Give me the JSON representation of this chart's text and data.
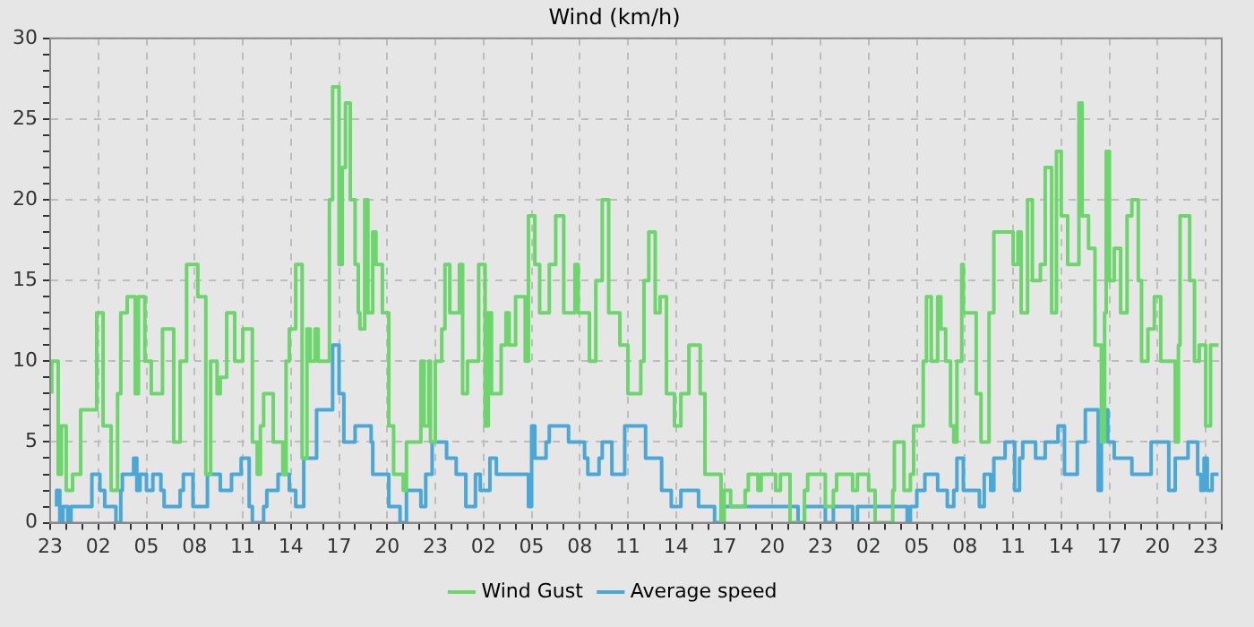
{
  "chart_data": {
    "type": "step",
    "title": "Wind (km/h)",
    "xlim": [
      "--01-01T23:00",
      "--01-05T00:00"
    ],
    "ylim": [
      0,
      30
    ],
    "xticks": [
      {
        "value": "--01-01T23:00",
        "label": "23"
      },
      {
        "value": "--01-02T00:00",
        "label": null
      },
      {
        "value": "--01-02T01:00",
        "label": null
      },
      {
        "value": "--01-02T02:00",
        "label": "02"
      },
      {
        "value": "--01-02T03:00",
        "label": null
      },
      {
        "value": "--01-02T04:00",
        "label": null
      },
      {
        "value": "--01-02T05:00",
        "label": "05"
      },
      {
        "value": "--01-02T06:00",
        "label": null
      },
      {
        "value": "--01-02T07:00",
        "label": null
      },
      {
        "value": "--01-02T08:00",
        "label": "08"
      },
      {
        "value": "--01-02T09:00",
        "label": null
      },
      {
        "value": "--01-02T10:00",
        "label": null
      },
      {
        "value": "--01-02T11:00",
        "label": "11"
      },
      {
        "value": "--01-02T12:00",
        "label": null
      },
      {
        "value": "--01-02T13:00",
        "label": null
      },
      {
        "value": "--01-02T14:00",
        "label": "14"
      },
      {
        "value": "--01-02T15:00",
        "label": null
      },
      {
        "value": "--01-02T16:00",
        "label": null
      },
      {
        "value": "--01-02T17:00",
        "label": "17"
      },
      {
        "value": "--01-02T18:00",
        "label": null
      },
      {
        "value": "--01-02T19:00",
        "label": null
      },
      {
        "value": "--01-02T20:00",
        "label": "20"
      },
      {
        "value": "--01-02T21:00",
        "label": null
      },
      {
        "value": "--01-02T22:00",
        "label": null
      },
      {
        "value": "--01-02T23:00",
        "label": "23"
      },
      {
        "value": "--01-03T00:00",
        "label": null
      },
      {
        "value": "--01-03T01:00",
        "label": null
      },
      {
        "value": "--01-03T02:00",
        "label": "02"
      },
      {
        "value": "--01-03T03:00",
        "label": null
      },
      {
        "value": "--01-03T04:00",
        "label": null
      },
      {
        "value": "--01-03T05:00",
        "label": "05"
      },
      {
        "value": "--01-03T06:00",
        "label": null
      },
      {
        "value": "--01-03T07:00",
        "label": null
      },
      {
        "value": "--01-03T08:00",
        "label": "08"
      },
      {
        "value": "--01-03T09:00",
        "label": null
      },
      {
        "value": "--01-03T10:00",
        "label": null
      },
      {
        "value": "--01-03T11:00",
        "label": "11"
      },
      {
        "value": "--01-03T12:00",
        "label": null
      },
      {
        "value": "--01-03T13:00",
        "label": null
      },
      {
        "value": "--01-03T14:00",
        "label": "14"
      },
      {
        "value": "--01-03T15:00",
        "label": null
      },
      {
        "value": "--01-03T16:00",
        "label": null
      },
      {
        "value": "--01-03T17:00",
        "label": "17"
      },
      {
        "value": "--01-03T18:00",
        "label": null
      },
      {
        "value": "--01-03T19:00",
        "label": null
      },
      {
        "value": "--01-03T20:00",
        "label": "20"
      },
      {
        "value": "--01-03T21:00",
        "label": null
      },
      {
        "value": "--01-03T22:00",
        "label": null
      },
      {
        "value": "--01-03T23:00",
        "label": "23"
      },
      {
        "value": "--01-04T00:00",
        "label": null
      },
      {
        "value": "--01-04T01:00",
        "label": null
      },
      {
        "value": "--01-04T02:00",
        "label": "02"
      },
      {
        "value": "--01-04T03:00",
        "label": null
      },
      {
        "value": "--01-04T04:00",
        "label": null
      },
      {
        "value": "--01-04T05:00",
        "label": "05"
      },
      {
        "value": "--01-04T06:00",
        "label": null
      },
      {
        "value": "--01-04T07:00",
        "label": null
      },
      {
        "value": "--01-04T08:00",
        "label": "08"
      },
      {
        "value": "--01-04T09:00",
        "label": null
      },
      {
        "value": "--01-04T10:00",
        "label": null
      },
      {
        "value": "--01-04T11:00",
        "label": "11"
      },
      {
        "value": "--01-04T12:00",
        "label": null
      },
      {
        "value": "--01-04T13:00",
        "label": null
      },
      {
        "value": "--01-04T14:00",
        "label": "14"
      },
      {
        "value": "--01-04T15:00",
        "label": null
      },
      {
        "value": "--01-04T16:00",
        "label": null
      },
      {
        "value": "--01-04T17:00",
        "label": "17"
      },
      {
        "value": "--01-04T18:00",
        "label": null
      },
      {
        "value": "--01-04T19:00",
        "label": null
      },
      {
        "value": "--01-04T20:00",
        "label": "20"
      },
      {
        "value": "--01-04T21:00",
        "label": null
      },
      {
        "value": "--01-04T22:00",
        "label": null
      },
      {
        "value": "--01-04T23:00",
        "label": "23"
      },
      {
        "value": "--01-05T00:00",
        "label": null
      }
    ],
    "yticks": [
      0,
      {
        "value": 1,
        "label": null
      },
      {
        "value": 2,
        "label": null
      },
      {
        "value": 3,
        "label": null
      },
      {
        "value": 4,
        "label": null
      },
      5,
      {
        "value": 6,
        "label": null
      },
      {
        "value": 7,
        "label": null
      },
      {
        "value": 8,
        "label": null
      },
      {
        "value": 9,
        "label": null
      },
      10,
      {
        "value": 11,
        "label": null
      },
      {
        "value": 12,
        "label": null
      },
      {
        "value": 13,
        "label": null
      },
      {
        "value": 14,
        "label": null
      },
      15,
      {
        "value": 16,
        "label": null
      },
      {
        "value": 17,
        "label": null
      },
      {
        "value": 18,
        "label": null
      },
      {
        "value": 19,
        "label": null
      },
      20,
      {
        "value": 21,
        "label": null
      },
      {
        "value": 22,
        "label": null
      },
      {
        "value": 23,
        "label": null
      },
      {
        "value": 24,
        "label": null
      },
      25,
      {
        "value": 26,
        "label": null
      },
      {
        "value": 27,
        "label": null
      },
      {
        "value": 28,
        "label": null
      },
      {
        "value": 29,
        "label": null
      },
      30
    ],
    "grid": true,
    "legend": "bottom",
    "marker": "none",
    "line_style": "solid",
    "series": [
      {
        "name": "Wind Gust",
        "color": "#6cd66c",
        "x": [
          "--01-01T23:06",
          "--01-01T23:30",
          "--01-01T23:42",
          "--01-02T00:00",
          "--01-02T00:24",
          "--01-02T00:54",
          "--01-02T01:54",
          "--01-02T02:18",
          "--01-02T02:48",
          "--01-02T03:12",
          "--01-02T03:24",
          "--01-02T03:48",
          "--01-02T04:18",
          "--01-02T04:30",
          "--01-02T04:54",
          "--01-02T05:18",
          "--01-02T06:00",
          "--01-02T06:42",
          "--01-02T07:06",
          "--01-02T07:30",
          "--01-02T08:12",
          "--01-02T08:42",
          "--01-02T09:00",
          "--01-02T09:24",
          "--01-02T09:36",
          "--01-02T10:00",
          "--01-02T10:30",
          "--01-02T11:00",
          "--01-02T11:36",
          "--01-02T11:54",
          "--01-02T12:06",
          "--01-02T12:18",
          "--01-02T12:54",
          "--01-02T13:30",
          "--01-02T13:42",
          "--01-02T13:54",
          "--01-02T14:18",
          "--01-02T14:42",
          "--01-02T15:00",
          "--01-02T15:12",
          "--01-02T15:30",
          "--01-02T15:42",
          "--01-02T16:24",
          "--01-02T16:36",
          "--01-02T17:00",
          "--01-02T17:12",
          "--01-02T17:24",
          "--01-02T17:42",
          "--01-02T18:00",
          "--01-02T18:12",
          "--01-02T18:18",
          "--01-02T18:36",
          "--01-02T18:48",
          "--01-02T19:06",
          "--01-02T19:18",
          "--01-02T19:42",
          "--01-02T20:06",
          "--01-02T20:24",
          "--01-02T21:00",
          "--01-02T21:12",
          "--01-02T22:06",
          "--01-02T22:18",
          "--01-02T22:36",
          "--01-02T22:42",
          "--01-02T23:00",
          "--01-02T23:24",
          "--01-02T23:36",
          "--01-02T23:54",
          "--01-03T00:30",
          "--01-03T00:42",
          "--01-03T01:00",
          "--01-03T01:42",
          "--01-03T02:06",
          "--01-03T02:18",
          "--01-03T02:30",
          "--01-03T03:06",
          "--01-03T03:24",
          "--01-03T03:36",
          "--01-03T04:00",
          "--01-03T04:36",
          "--01-03T04:48",
          "--01-03T05:12",
          "--01-03T05:30",
          "--01-03T06:06",
          "--01-03T06:30",
          "--01-03T07:00",
          "--01-03T07:42",
          "--01-03T07:54",
          "--01-03T08:36",
          "--01-03T09:00",
          "--01-03T09:24",
          "--01-03T09:48",
          "--01-03T10:30",
          "--01-03T11:00",
          "--01-03T11:48",
          "--01-03T12:00",
          "--01-03T12:18",
          "--01-03T12:42",
          "--01-03T13:00",
          "--01-03T13:24",
          "--01-03T13:54",
          "--01-03T14:18",
          "--01-03T14:48",
          "--01-03T15:30",
          "--01-03T15:48",
          "--01-03T16:48",
          "--01-03T17:00",
          "--01-03T17:24",
          "--01-03T18:18",
          "--01-03T18:30",
          "--01-03T19:06",
          "--01-03T19:18",
          "--01-03T20:12",
          "--01-03T20:30",
          "--01-03T21:06",
          "--01-03T22:00",
          "--01-03T22:12",
          "--01-03T23:18",
          "--01-03T23:48",
          "--01-04T00:00",
          "--01-04T01:00",
          "--01-04T01:18",
          "--01-04T02:00",
          "--01-04T02:24",
          "--01-04T03:30",
          "--01-04T03:36",
          "--01-04T04:12",
          "--01-04T04:36",
          "--01-04T04:48",
          "--01-04T05:24",
          "--01-04T05:36",
          "--01-04T05:54",
          "--01-04T06:18",
          "--01-04T06:30",
          "--01-04T06:48",
          "--01-04T07:06",
          "--01-04T07:18",
          "--01-04T07:30",
          "--01-04T07:48",
          "--01-04T07:54",
          "--01-04T08:42",
          "--01-04T09:00",
          "--01-04T09:30",
          "--01-04T09:48",
          "--01-04T11:00",
          "--01-04T11:18",
          "--01-04T11:30",
          "--01-04T11:54",
          "--01-04T12:12",
          "--01-04T12:42",
          "--01-04T13:00",
          "--01-04T13:24",
          "--01-04T13:42",
          "--01-04T14:00",
          "--01-04T14:24",
          "--01-04T15:06",
          "--01-04T15:18",
          "--01-04T15:42",
          "--01-04T16:06",
          "--01-04T16:30",
          "--01-04T16:42",
          "--01-04T16:48",
          "--01-04T17:00",
          "--01-04T17:18",
          "--01-04T17:42",
          "--01-04T18:06",
          "--01-04T18:24",
          "--01-04T18:48",
          "--01-04T19:00",
          "--01-04T19:24",
          "--01-04T19:48",
          "--01-04T20:12",
          "--01-04T21:06",
          "--01-04T21:18",
          "--01-04T21:24",
          "--01-04T22:00",
          "--01-04T22:18",
          "--01-04T22:36",
          "--01-04T23:00",
          "--01-04T23:18",
          "--01-04T23:24",
          "--01-04T23:48"
        ],
        "values": [
          8,
          10,
          3,
          6,
          2,
          3,
          7,
          13,
          6,
          2,
          8,
          13,
          14,
          8,
          14,
          10,
          8,
          12,
          5,
          10,
          16,
          14,
          3,
          10,
          8,
          9,
          13,
          10,
          12,
          5,
          3,
          6,
          8,
          5,
          3,
          10,
          12,
          16,
          4,
          12,
          10,
          12,
          10,
          20,
          27,
          16,
          22,
          26,
          20,
          16,
          13,
          12,
          20,
          13,
          18,
          16,
          13,
          6,
          3,
          2,
          5,
          10,
          6,
          10,
          5,
          10,
          12,
          16,
          13,
          16,
          8,
          10,
          16,
          6,
          13,
          8,
          11,
          13,
          11,
          14,
          10,
          19,
          16,
          13,
          16,
          19,
          13,
          16,
          13,
          10,
          15,
          20,
          13,
          11,
          8,
          10,
          15,
          18,
          13,
          14,
          8,
          6,
          8,
          11,
          8,
          3,
          0,
          2,
          1,
          2,
          3,
          2,
          3,
          2,
          3,
          0,
          2,
          3,
          1,
          2,
          3,
          2,
          3,
          2,
          0,
          2,
          5,
          2,
          3,
          6,
          10,
          14,
          10,
          14,
          12,
          10,
          6,
          5,
          10,
          16,
          13,
          8,
          5,
          13,
          18,
          16,
          18,
          13,
          20,
          15,
          16,
          22,
          13,
          23,
          19,
          16,
          26,
          19,
          17,
          11,
          5,
          13,
          23,
          15,
          17,
          13,
          19,
          20,
          15,
          10,
          12,
          14,
          10,
          5,
          11,
          19,
          15,
          10,
          11,
          6,
          11,
          11
        ]
      },
      {
        "name": "Average speed",
        "color": "#4aa8d8",
        "x": [
          "--01-01T23:24",
          "--01-01T23:36",
          "--01-01T23:48",
          "--01-02T00:06",
          "--01-02T00:18",
          "--01-02T01:36",
          "--01-02T02:06",
          "--01-02T02:24",
          "--01-02T03:06",
          "--01-02T03:24",
          "--01-02T03:30",
          "--01-02T04:12",
          "--01-02T04:24",
          "--01-02T04:36",
          "--01-02T05:00",
          "--01-02T05:24",
          "--01-02T05:54",
          "--01-02T06:06",
          "--01-02T07:06",
          "--01-02T07:18",
          "--01-02T07:54",
          "--01-02T08:48",
          "--01-02T09:36",
          "--01-02T10:18",
          "--01-02T10:54",
          "--01-02T11:24",
          "--01-02T11:36",
          "--01-02T12:18",
          "--01-02T12:30",
          "--01-02T13:12",
          "--01-02T13:54",
          "--01-02T14:18",
          "--01-02T14:48",
          "--01-02T15:36",
          "--01-02T16:36",
          "--01-02T17:00",
          "--01-02T17:18",
          "--01-02T18:00",
          "--01-02T19:00",
          "--01-02T19:06",
          "--01-02T20:06",
          "--01-02T20:48",
          "--01-02T21:12",
          "--01-02T22:06",
          "--01-02T22:24",
          "--01-02T22:48",
          "--01-02T23:42",
          "--01-03T00:18",
          "--01-03T00:54",
          "--01-03T01:30",
          "--01-03T01:48",
          "--01-03T02:24",
          "--01-03T02:48",
          "--01-03T04:48",
          "--01-03T05:00",
          "--01-03T05:12",
          "--01-03T05:54",
          "--01-03T06:06",
          "--01-03T07:18",
          "--01-03T08:18",
          "--01-03T08:30",
          "--01-03T09:12",
          "--01-03T09:24",
          "--01-03T10:00",
          "--01-03T10:48",
          "--01-03T12:06",
          "--01-03T13:06",
          "--01-03T13:42",
          "--01-03T14:18",
          "--01-03T15:24",
          "--01-03T16:24",
          "--01-03T16:48",
          "--01-03T21:36",
          "--01-03T22:00",
          "--01-03T23:18",
          "--01-03T23:48",
          "--01-04T01:00",
          "--01-04T01:18",
          "--01-04T04:24",
          "--01-04T04:36",
          "--01-04T05:00",
          "--01-04T05:30",
          "--01-04T06:18",
          "--01-04T06:54",
          "--01-04T07:18",
          "--01-04T07:30",
          "--01-04T07:54",
          "--01-04T08:54",
          "--01-04T09:12",
          "--01-04T09:36",
          "--01-04T09:48",
          "--01-04T10:30",
          "--01-04T11:06",
          "--01-04T11:24",
          "--01-04T11:36",
          "--01-04T12:24",
          "--01-04T13:00",
          "--01-04T13:48",
          "--01-04T14:12",
          "--01-04T15:00",
          "--01-04T15:30",
          "--01-04T16:18",
          "--01-04T16:30",
          "--01-04T16:54",
          "--01-04T17:18",
          "--01-04T18:24",
          "--01-04T19:36",
          "--01-04T20:42",
          "--01-04T21:06",
          "--01-04T21:54",
          "--01-04T22:30",
          "--01-04T22:42",
          "--01-04T22:54",
          "--01-04T23:06",
          "--01-04T23:24",
          "--01-04T23:36",
          "--01-04T23:48"
        ],
        "values": [
          1,
          2,
          0,
          1,
          0,
          1,
          3,
          2,
          1,
          0,
          2,
          3,
          4,
          2,
          3,
          2,
          3,
          2,
          1,
          2,
          3,
          1,
          3,
          2,
          3,
          4,
          1,
          0,
          1,
          2,
          3,
          2,
          1,
          4,
          7,
          11,
          8,
          5,
          6,
          5,
          3,
          1,
          0,
          2,
          1,
          3,
          5,
          4,
          3,
          1,
          3,
          2,
          4,
          3,
          1,
          6,
          4,
          5,
          6,
          5,
          4,
          3,
          4,
          5,
          3,
          6,
          4,
          2,
          1,
          2,
          1,
          0,
          1,
          0,
          1,
          0,
          1,
          0,
          1,
          0,
          1,
          2,
          3,
          2,
          1,
          2,
          4,
          2,
          1,
          3,
          2,
          4,
          5,
          2,
          4,
          5,
          4,
          5,
          6,
          3,
          5,
          7,
          2,
          7,
          5,
          4,
          3,
          5,
          2,
          4,
          5,
          3,
          2,
          4,
          2,
          3,
          3
        ]
      }
    ]
  }
}
